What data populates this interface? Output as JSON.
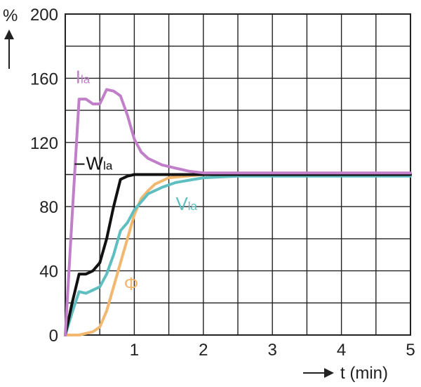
{
  "chart_data": {
    "type": "line",
    "xlabel": "t (min)",
    "ylabel": "%",
    "xlim": [
      0,
      5
    ],
    "ylim": [
      0,
      200
    ],
    "xticks": [
      "1",
      "2",
      "3",
      "4",
      "5"
    ],
    "yticks": [
      "0",
      "40",
      "80",
      "120",
      "160",
      "200"
    ],
    "grid": true,
    "series": [
      {
        "name": "Ila",
        "label_main": "I",
        "label_sub": "la",
        "color": "#c07fc8",
        "x": [
          0,
          0.1,
          0.2,
          0.3,
          0.4,
          0.5,
          0.6,
          0.7,
          0.8,
          0.9,
          1.0,
          1.1,
          1.2,
          1.4,
          1.6,
          1.8,
          2.0,
          2.2,
          2.5,
          3.0,
          4.0,
          5.0
        ],
        "y": [
          0,
          74,
          147,
          147,
          144,
          144,
          153,
          152,
          149,
          137,
          122,
          114,
          110,
          106,
          104,
          102,
          101,
          101,
          101,
          101,
          101,
          101
        ]
      },
      {
        "name": "Wla",
        "label_main": "W",
        "label_sub": "la",
        "color": "#111111",
        "x": [
          0,
          0.1,
          0.2,
          0.3,
          0.4,
          0.5,
          0.6,
          0.7,
          0.8,
          0.9,
          1.0,
          1.2,
          1.5,
          2.0,
          3.0,
          4.0,
          5.0
        ],
        "y": [
          0,
          20,
          38,
          38,
          40,
          45,
          60,
          80,
          97,
          99,
          100,
          100,
          100,
          100,
          100,
          100,
          100
        ]
      },
      {
        "name": "Vla",
        "label_main": "V",
        "label_sub": "la",
        "color": "#5fbfc0",
        "x": [
          0,
          0.1,
          0.2,
          0.3,
          0.4,
          0.5,
          0.6,
          0.7,
          0.8,
          0.9,
          1.0,
          1.2,
          1.4,
          1.6,
          2.0,
          2.5,
          3.0,
          4.0,
          5.0
        ],
        "y": [
          0,
          14,
          27,
          26,
          28,
          30,
          38,
          50,
          65,
          70,
          78,
          88,
          92,
          95,
          98,
          99,
          99,
          99,
          99
        ]
      },
      {
        "name": "Φ",
        "label_main": "Φ",
        "label_sub": "",
        "color": "#f2b870",
        "x": [
          0,
          0.2,
          0.3,
          0.4,
          0.5,
          0.6,
          0.7,
          0.8,
          0.9,
          1.0,
          1.1,
          1.2,
          1.3,
          1.5,
          2.0,
          3.0,
          5.0
        ],
        "y": [
          0,
          0,
          1,
          2,
          5,
          15,
          30,
          45,
          60,
          75,
          85,
          90,
          94,
          98,
          100,
          100,
          100
        ]
      }
    ],
    "labels_at": {
      "Ila": [
        0.15,
        157
      ],
      "Wla": [
        0.3,
        103
      ],
      "Vla": [
        1.6,
        78
      ],
      "Φ": [
        0.85,
        28
      ]
    }
  }
}
